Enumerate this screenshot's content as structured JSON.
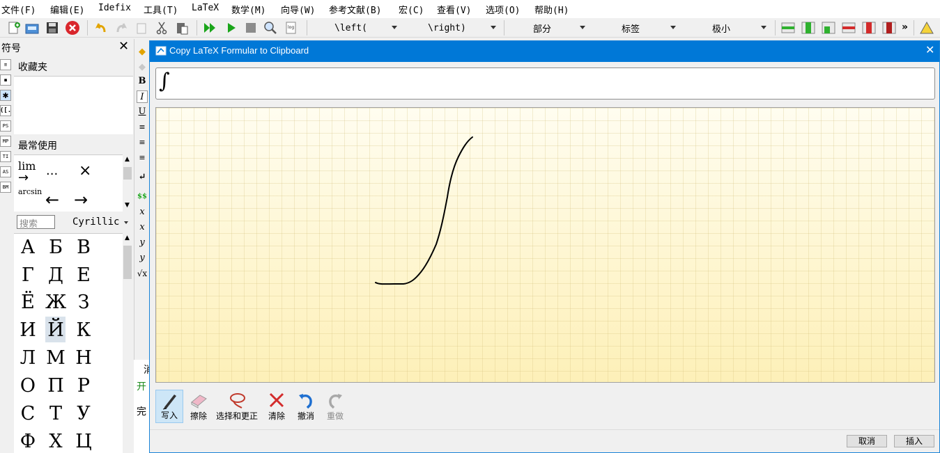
{
  "menu": [
    "文件(F)",
    "编辑(E)",
    "Idefix",
    "工具(T)",
    "LaTeX",
    "数学(M)",
    "向导(W)",
    "参考文献(B)",
    "宏(C)",
    "查看(V)",
    "选项(O)",
    "帮助(H)"
  ],
  "toolbar": {
    "combo_left": "\\left(",
    "combo_right": "\\right)",
    "combo_section": "部分",
    "combo_label": "标签",
    "combo_size": "极小",
    "more": "»"
  },
  "symbols_panel": {
    "title": "符号",
    "favorites": "收藏夹",
    "most_used": "最常使用",
    "most_used_items": [
      "lim",
      "...",
      "×",
      "arcsin",
      "←",
      "→"
    ],
    "search_placeholder": "搜索",
    "category": "Cyrillic",
    "cyrillic": [
      "А",
      "Б",
      "В",
      "Г",
      "Д",
      "Е",
      "Ё",
      "Ж",
      "З",
      "И",
      "Й",
      "К",
      "Л",
      "М",
      "Н",
      "О",
      "П",
      "Р",
      "С",
      "Т",
      "У",
      "Ф",
      "Х",
      "Ц"
    ],
    "side_tabs": [
      "≡",
      "◼",
      "✱",
      "([.",
      "PS",
      "MP",
      "TI",
      "AS",
      "BM"
    ]
  },
  "edit_strip": [
    "B",
    "I",
    "U"
  ],
  "background_text": [
    "消",
    "开",
    "完"
  ],
  "dialog": {
    "title": "Copy LaTeX Formular to Clipboard",
    "formula": "∫",
    "tools": [
      {
        "label": "写入",
        "icon": "pen-icon"
      },
      {
        "label": "擦除",
        "icon": "eraser-icon"
      },
      {
        "label": "选择和更正",
        "icon": "lasso-icon"
      },
      {
        "label": "清除",
        "icon": "clear-x-icon"
      },
      {
        "label": "撤消",
        "icon": "undo-icon"
      },
      {
        "label": "重做",
        "icon": "redo-icon"
      }
    ],
    "cancel": "取消",
    "insert": "插入"
  },
  "colors": {
    "title_bar": "#0078d7",
    "canvas_top": "#fffdf0",
    "canvas_bottom": "#fdf0b8",
    "ink": "#000000"
  }
}
